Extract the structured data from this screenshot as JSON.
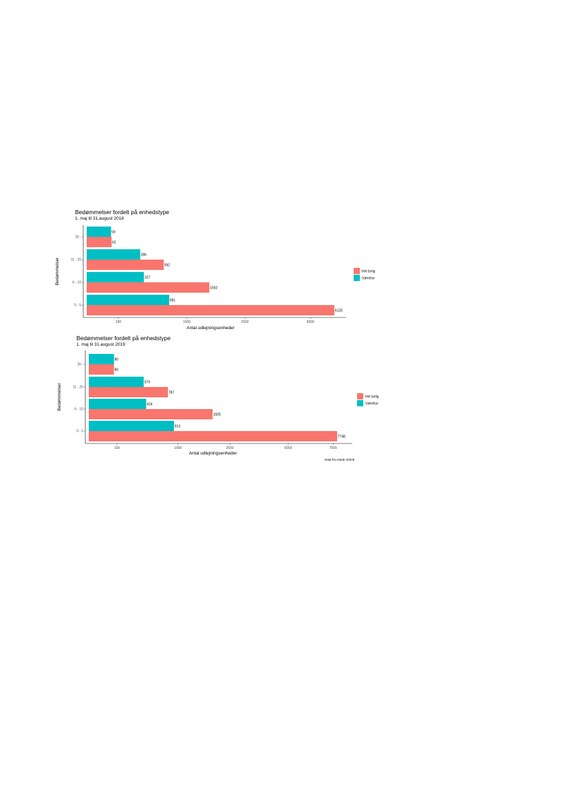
{
  "chart_data": [
    {
      "type": "bar",
      "orientation": "horizontal",
      "title": "Bedømmelser fordelt på enhedstype",
      "subtitle": "1. maj til 31.august 2018",
      "xlabel": "Antal udlejningsenheder",
      "ylabel": "Bedømmelser",
      "categories": [
        "0 - 5",
        "6 - 10",
        "11 - 25",
        "26 -"
      ],
      "x_scale": "sqrt",
      "x_ticks": [
        100,
        1000,
        2500,
        5000
      ],
      "xlim": [
        0,
        6125
      ],
      "grid": false,
      "legend_position": "right",
      "series": [
        {
          "name": "Hel bolig",
          "color": "#F8766D",
          "values": [
            6125,
            1502,
            592,
            62
          ]
        },
        {
          "name": "Værelse",
          "color": "#00BFC4",
          "values": [
            681,
            327,
            286,
            59
          ]
        }
      ]
    },
    {
      "type": "bar",
      "orientation": "horizontal",
      "title": "Bedømmelser fordelt på enhedstype",
      "subtitle": "1. maj til 31.august 2019",
      "xlabel": "Antal udlejningsenheder",
      "ylabel": "Bedømmelser",
      "categories": [
        "0 - 5",
        "6 - 10",
        "11 - 25",
        "26 -"
      ],
      "x_scale": "sqrt",
      "x_ticks": [
        100,
        1000,
        2500,
        5000,
        7500
      ],
      "xlim": [
        0,
        7748
      ],
      "grid": false,
      "legend_position": "right",
      "caption": "Data fra Inside Airbnb",
      "series": [
        {
          "name": "Hel bolig",
          "color": "#F8766D",
          "values": [
            7748,
            1925,
            787,
            80
          ]
        },
        {
          "name": "Værelse",
          "color": "#00BFC4",
          "values": [
            913,
            414,
            379,
            80
          ]
        }
      ]
    }
  ]
}
